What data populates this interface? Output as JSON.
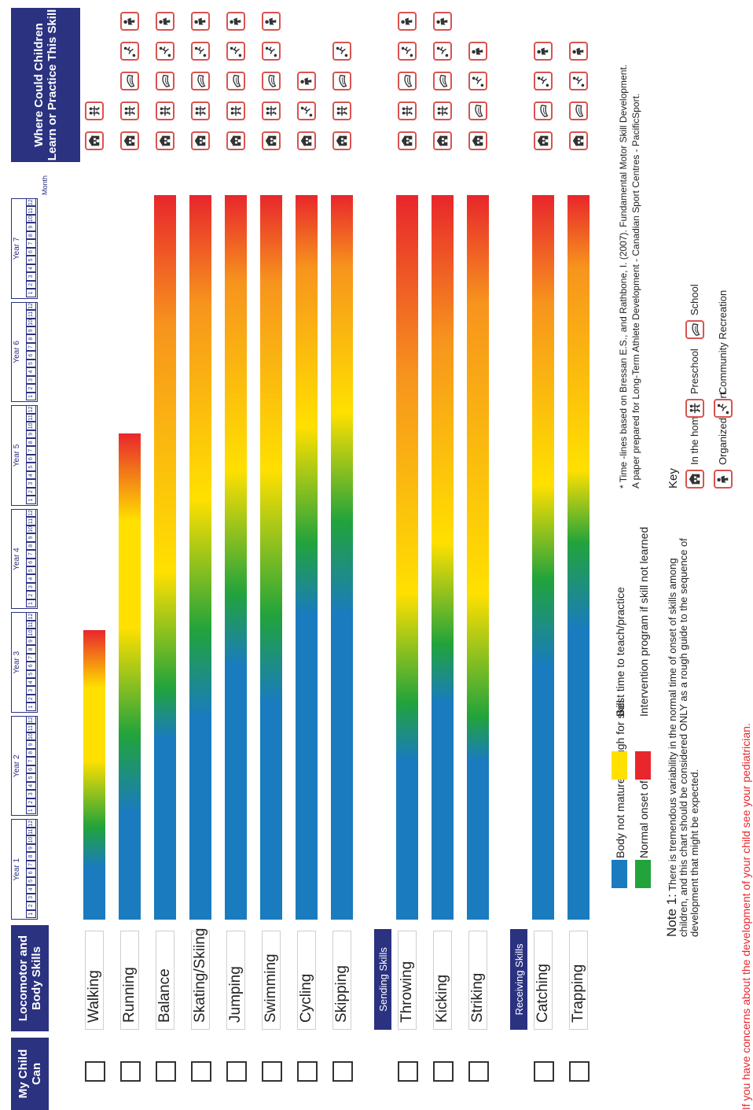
{
  "headers": {
    "my_child_can": "My Child Can",
    "locomotor": "Locomotor and Body Skills",
    "where": "Where Could Children Learn or Practice This Skill"
  },
  "timeline": {
    "years": [
      "Year 1",
      "Year 2",
      "Year 3",
      "Year 4",
      "Year 5",
      "Year 6",
      "Year 7"
    ],
    "months": [
      "1",
      "2",
      "3",
      "4",
      "5",
      "6",
      "7",
      "8",
      "9",
      "10",
      "11",
      "12"
    ],
    "unit_label": "Month"
  },
  "sections": [
    {
      "title": "",
      "skills": [
        {
          "name": "Walking",
          "range_years": [
            0,
            2.8
          ],
          "icons": [
            "in-the-home",
            "preschool"
          ]
        },
        {
          "name": "Running",
          "range_years": [
            0,
            4.7
          ],
          "icons": [
            "in-the-home",
            "preschool",
            "school",
            "community-recreation",
            "organized-sport"
          ]
        },
        {
          "name": "Balance",
          "range_years": [
            0,
            7
          ],
          "icons": [
            "in-the-home",
            "preschool",
            "school",
            "community-recreation",
            "organized-sport"
          ]
        },
        {
          "name": "Skating/Skiing",
          "range_years": [
            0,
            7
          ],
          "icons": [
            "in-the-home",
            "preschool",
            "school",
            "community-recreation",
            "organized-sport"
          ]
        },
        {
          "name": "Jumping",
          "range_years": [
            0,
            7
          ],
          "icons": [
            "in-the-home",
            "preschool",
            "school",
            "community-recreation",
            "organized-sport"
          ]
        },
        {
          "name": "Swimming",
          "range_years": [
            0,
            7
          ],
          "icons": [
            "in-the-home",
            "preschool",
            "school",
            "community-recreation",
            "organized-sport"
          ]
        },
        {
          "name": "Cycling",
          "range_years": [
            0,
            7
          ],
          "icons": [
            "in-the-home",
            "community-recreation",
            "organized-sport"
          ]
        },
        {
          "name": "Skipping",
          "range_years": [
            0,
            7
          ],
          "icons": [
            "in-the-home",
            "preschool",
            "school",
            "community-recreation"
          ]
        }
      ]
    },
    {
      "title": "Sending Skills",
      "skills": [
        {
          "name": "Throwing",
          "range_years": [
            0,
            7
          ],
          "icons": [
            "in-the-home",
            "preschool",
            "school",
            "community-recreation",
            "organized-sport"
          ]
        },
        {
          "name": "Kicking",
          "range_years": [
            0,
            7
          ],
          "icons": [
            "in-the-home",
            "preschool",
            "school",
            "community-recreation",
            "organized-sport"
          ]
        },
        {
          "name": "Striking",
          "range_years": [
            0,
            7
          ],
          "icons": [
            "in-the-home",
            "school",
            "community-recreation",
            "organized-sport"
          ]
        }
      ]
    },
    {
      "title": "Receiving Skills",
      "skills": [
        {
          "name": "Catching",
          "range_years": [
            0,
            7
          ],
          "icons": [
            "in-the-home",
            "school",
            "community-recreation",
            "organized-sport"
          ]
        },
        {
          "name": "Trapping",
          "range_years": [
            0,
            7
          ],
          "icons": [
            "in-the-home",
            "school",
            "community-recreation",
            "organized-sport"
          ]
        }
      ]
    }
  ],
  "legend": [
    {
      "color": "#1a7bbf",
      "label": "Body not mature enough for skill"
    },
    {
      "color": "#22a33b",
      "label": "Normal onset of skill"
    },
    {
      "color": "#ffe000",
      "label": "Best time to teach/practice"
    },
    {
      "color": "#e8262c",
      "label": "Intervention program if skill not learned"
    }
  ],
  "note": {
    "title": "Note 1:",
    "text": "There is tremendous variability in the normal time of onset of skills among children, and this chart should be considered ONLY as a rough guide to the sequence of development that might be expected."
  },
  "credits": [
    "* Time -lines based on Bressan E.S., and Rathbone, I. (2007). Fundamental Motor Skill Development.",
    "A paper prepared for Long-Term Athlete Development - Canadian Sport Centres - PacificSport."
  ],
  "key": {
    "title": "Key",
    "items": [
      {
        "icon": "in-the-home",
        "label": "In the home"
      },
      {
        "icon": "preschool",
        "label": "Preschool"
      },
      {
        "icon": "school",
        "label": "School"
      },
      {
        "icon": "organized-sport",
        "label": "Organized sport"
      },
      {
        "icon": "community-recreation",
        "label": "Community Recreation"
      }
    ]
  },
  "footer": "If you have concerns about the development of your child see your pediatrician.",
  "chart_data": {
    "type": "bar",
    "orientation": "horizontal timeline",
    "x_unit": "years",
    "xlim": [
      0,
      7
    ],
    "categories": [
      "Walking",
      "Running",
      "Balance",
      "Skating/Skiing",
      "Jumping",
      "Swimming",
      "Cycling",
      "Skipping",
      "Throwing",
      "Kicking",
      "Striking",
      "Catching",
      "Trapping"
    ],
    "series": [
      {
        "name": "Body not mature enough for skill",
        "color": "#1a7bbf"
      },
      {
        "name": "Normal onset of skill",
        "color": "#22a33b"
      },
      {
        "name": "Best time to teach/practice",
        "color": "#ffe000"
      },
      {
        "name": "Intervention program if skill not learned",
        "color": "#e8262c"
      }
    ],
    "bars": [
      {
        "skill": "Walking",
        "start": 0,
        "end": 2.8,
        "stops": [
          {
            "at": 0.0,
            "color": "#1a7bbf"
          },
          {
            "at": 0.18,
            "color": "#1a7bbf"
          },
          {
            "at": 0.32,
            "color": "#22a33b"
          },
          {
            "at": 0.55,
            "color": "#ffe000"
          },
          {
            "at": 0.8,
            "color": "#ffe000"
          },
          {
            "at": 1.0,
            "color": "#e8262c"
          }
        ]
      },
      {
        "skill": "Running",
        "start": 0,
        "end": 4.7,
        "stops": [
          {
            "at": 0.0,
            "color": "#1a7bbf"
          },
          {
            "at": 0.22,
            "color": "#1a7bbf"
          },
          {
            "at": 0.38,
            "color": "#22a33b"
          },
          {
            "at": 0.6,
            "color": "#ffe000"
          },
          {
            "at": 0.82,
            "color": "#ffe000"
          },
          {
            "at": 1.0,
            "color": "#e8262c"
          }
        ]
      },
      {
        "skill": "Balance",
        "start": 0,
        "end": 7,
        "stops": [
          {
            "at": 0.0,
            "color": "#1a7bbf"
          },
          {
            "at": 0.25,
            "color": "#1a7bbf"
          },
          {
            "at": 0.32,
            "color": "#22a33b"
          },
          {
            "at": 0.48,
            "color": "#ffe000"
          },
          {
            "at": 0.82,
            "color": "#f7941d"
          },
          {
            "at": 1.0,
            "color": "#e8262c"
          }
        ]
      },
      {
        "skill": "Skating/Skiing",
        "start": 0,
        "end": 7,
        "stops": [
          {
            "at": 0.0,
            "color": "#1a7bbf"
          },
          {
            "at": 0.28,
            "color": "#1a7bbf"
          },
          {
            "at": 0.4,
            "color": "#22a33b"
          },
          {
            "at": 0.58,
            "color": "#ffe000"
          },
          {
            "at": 0.85,
            "color": "#f7941d"
          },
          {
            "at": 1.0,
            "color": "#e8262c"
          }
        ]
      },
      {
        "skill": "Jumping",
        "start": 0,
        "end": 7,
        "stops": [
          {
            "at": 0.0,
            "color": "#1a7bbf"
          },
          {
            "at": 0.35,
            "color": "#1a7bbf"
          },
          {
            "at": 0.45,
            "color": "#22a33b"
          },
          {
            "at": 0.62,
            "color": "#ffe000"
          },
          {
            "at": 0.88,
            "color": "#f7941d"
          },
          {
            "at": 1.0,
            "color": "#e8262c"
          }
        ]
      },
      {
        "skill": "Swimming",
        "start": 0,
        "end": 7,
        "stops": [
          {
            "at": 0.0,
            "color": "#1a7bbf"
          },
          {
            "at": 0.3,
            "color": "#1a7bbf"
          },
          {
            "at": 0.42,
            "color": "#22a33b"
          },
          {
            "at": 0.62,
            "color": "#ffe000"
          },
          {
            "at": 0.88,
            "color": "#f7941d"
          },
          {
            "at": 1.0,
            "color": "#e8262c"
          }
        ]
      },
      {
        "skill": "Cycling",
        "start": 0,
        "end": 7,
        "stops": [
          {
            "at": 0.0,
            "color": "#1a7bbf"
          },
          {
            "at": 0.42,
            "color": "#1a7bbf"
          },
          {
            "at": 0.52,
            "color": "#22a33b"
          },
          {
            "at": 0.68,
            "color": "#ffe000"
          },
          {
            "at": 0.9,
            "color": "#f7941d"
          },
          {
            "at": 1.0,
            "color": "#e8262c"
          }
        ]
      },
      {
        "skill": "Skipping",
        "start": 0,
        "end": 7,
        "stops": [
          {
            "at": 0.0,
            "color": "#1a7bbf"
          },
          {
            "at": 0.42,
            "color": "#1a7bbf"
          },
          {
            "at": 0.55,
            "color": "#22a33b"
          },
          {
            "at": 0.7,
            "color": "#ffe000"
          },
          {
            "at": 0.9,
            "color": "#f7941d"
          },
          {
            "at": 1.0,
            "color": "#e8262c"
          }
        ]
      },
      {
        "skill": "Throwing",
        "start": 0,
        "end": 7,
        "stops": [
          {
            "at": 0.0,
            "color": "#1a7bbf"
          },
          {
            "at": 0.22,
            "color": "#1a7bbf"
          },
          {
            "at": 0.3,
            "color": "#22a33b"
          },
          {
            "at": 0.45,
            "color": "#ffe000"
          },
          {
            "at": 0.75,
            "color": "#f7941d"
          },
          {
            "at": 1.0,
            "color": "#e8262c"
          }
        ]
      },
      {
        "skill": "Kicking",
        "start": 0,
        "end": 7,
        "stops": [
          {
            "at": 0.0,
            "color": "#1a7bbf"
          },
          {
            "at": 0.3,
            "color": "#1a7bbf"
          },
          {
            "at": 0.38,
            "color": "#22a33b"
          },
          {
            "at": 0.52,
            "color": "#ffe000"
          },
          {
            "at": 0.8,
            "color": "#f7941d"
          },
          {
            "at": 1.0,
            "color": "#e8262c"
          }
        ]
      },
      {
        "skill": "Striking",
        "start": 0,
        "end": 7,
        "stops": [
          {
            "at": 0.0,
            "color": "#1a7bbf"
          },
          {
            "at": 0.22,
            "color": "#1a7bbf"
          },
          {
            "at": 0.28,
            "color": "#22a33b"
          },
          {
            "at": 0.45,
            "color": "#ffe000"
          },
          {
            "at": 0.85,
            "color": "#f7941d"
          },
          {
            "at": 1.0,
            "color": "#e8262c"
          }
        ]
      },
      {
        "skill": "Catching",
        "start": 0,
        "end": 7,
        "stops": [
          {
            "at": 0.0,
            "color": "#1a7bbf"
          },
          {
            "at": 0.35,
            "color": "#1a7bbf"
          },
          {
            "at": 0.47,
            "color": "#22a33b"
          },
          {
            "at": 0.6,
            "color": "#ffe000"
          },
          {
            "at": 0.85,
            "color": "#f7941d"
          },
          {
            "at": 1.0,
            "color": "#e8262c"
          }
        ]
      },
      {
        "skill": "Trapping",
        "start": 0,
        "end": 7,
        "stops": [
          {
            "at": 0.0,
            "color": "#1a7bbf"
          },
          {
            "at": 0.4,
            "color": "#1a7bbf"
          },
          {
            "at": 0.52,
            "color": "#22a33b"
          },
          {
            "at": 0.62,
            "color": "#ffe000"
          },
          {
            "at": 0.9,
            "color": "#f7941d"
          },
          {
            "at": 1.0,
            "color": "#e8262c"
          }
        ]
      }
    ]
  }
}
